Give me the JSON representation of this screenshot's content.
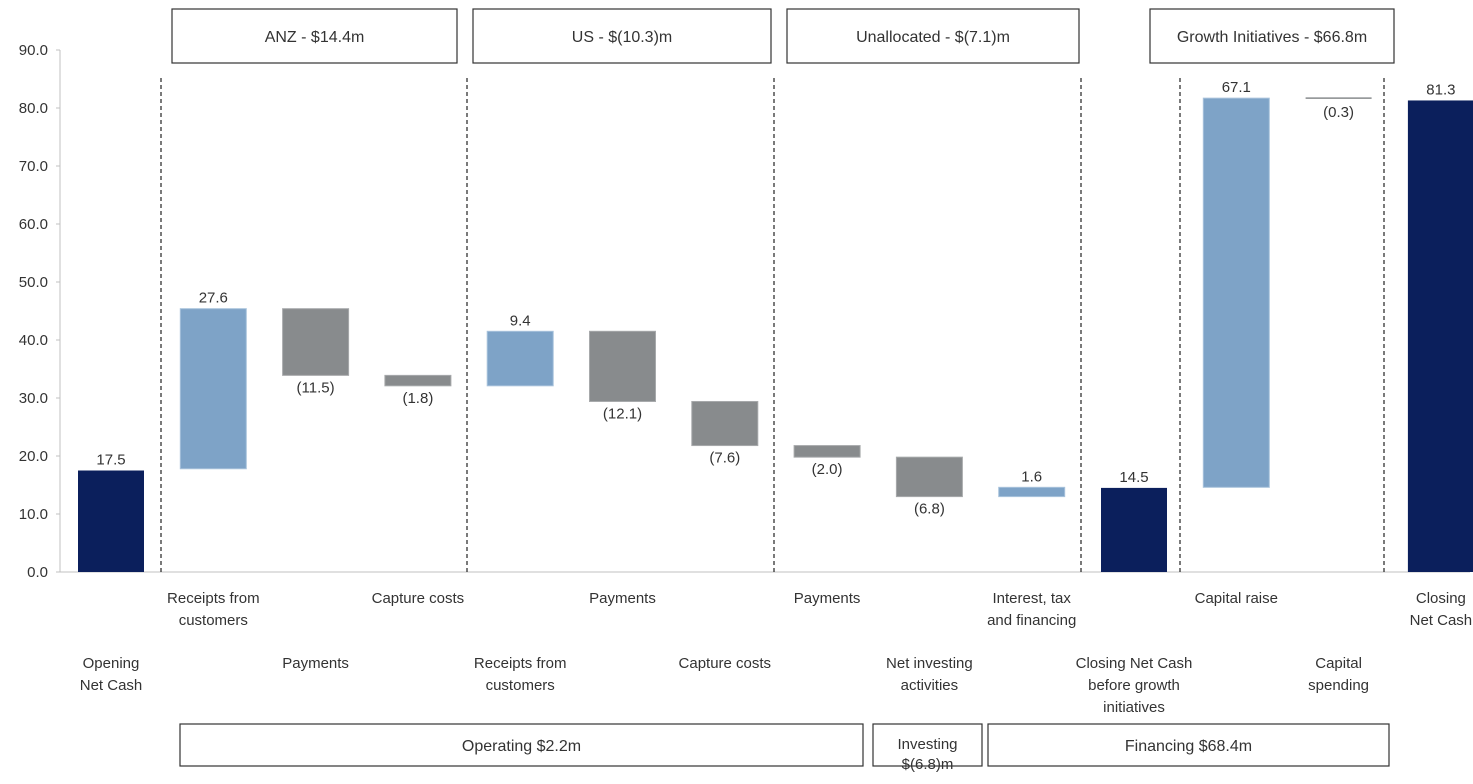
{
  "chart_data": {
    "type": "bar",
    "subtype": "waterfall",
    "title": "",
    "xlabel": "",
    "ylabel": "",
    "ylim": [
      0,
      90
    ],
    "yticks": [
      "0.0",
      "10.0",
      "20.0",
      "30.0",
      "40.0",
      "50.0",
      "60.0",
      "70.0",
      "80.0",
      "90.0"
    ],
    "grid": false,
    "legend": "none",
    "colors": {
      "total": "#0b1f5c",
      "increase": "#7ea3c7",
      "decrease": "#888b8d",
      "text": "#333333",
      "axis": "#c0c0c0",
      "box_border": "#333333"
    },
    "bars": [
      {
        "kind": "total",
        "label": [
          "Opening",
          "Net Cash"
        ],
        "label_row": 2,
        "base": 0,
        "top": 17.5,
        "value_label": "17.5",
        "value_pos": "above"
      },
      {
        "kind": "increase",
        "label": [
          "Receipts from",
          "customers"
        ],
        "label_row": 1,
        "base": 17.8,
        "top": 45.4,
        "value_label": "27.6",
        "value_pos": "above"
      },
      {
        "kind": "decrease",
        "label": [
          "Payments"
        ],
        "label_row": 2,
        "base": 33.9,
        "top": 45.4,
        "value_label": "(11.5)",
        "value_pos": "below"
      },
      {
        "kind": "decrease",
        "label": [
          "Capture costs"
        ],
        "label_row": 1,
        "base": 32.1,
        "top": 33.9,
        "value_label": "(1.8)",
        "value_pos": "below"
      },
      {
        "kind": "increase",
        "label": [
          "Receipts from",
          "customers"
        ],
        "label_row": 2,
        "base": 32.1,
        "top": 41.5,
        "value_label": "9.4",
        "value_pos": "above"
      },
      {
        "kind": "decrease",
        "label": [
          "Payments"
        ],
        "label_row": 1,
        "base": 29.4,
        "top": 41.5,
        "value_label": "(12.1)",
        "value_pos": "below"
      },
      {
        "kind": "decrease",
        "label": [
          "Capture costs"
        ],
        "label_row": 2,
        "base": 21.8,
        "top": 29.4,
        "value_label": "(7.6)",
        "value_pos": "below"
      },
      {
        "kind": "decrease",
        "label": [
          "Payments"
        ],
        "label_row": 1,
        "base": 19.8,
        "top": 21.8,
        "value_label": "(2.0)",
        "value_pos": "below"
      },
      {
        "kind": "decrease",
        "label": [
          "Net investing",
          "activities"
        ],
        "label_row": 2,
        "base": 13.0,
        "top": 19.8,
        "value_label": "(6.8)",
        "value_pos": "below"
      },
      {
        "kind": "increase",
        "label": [
          "Interest, tax",
          "and financing"
        ],
        "label_row": 1,
        "base": 13.0,
        "top": 14.6,
        "value_label": "1.6",
        "value_pos": "above"
      },
      {
        "kind": "total",
        "label": [
          "Closing Net Cash",
          "before growth",
          "initiatives"
        ],
        "label_row": 2,
        "base": 0,
        "top": 14.5,
        "value_label": "14.5",
        "value_pos": "above"
      },
      {
        "kind": "increase",
        "label": [
          "Capital raise"
        ],
        "label_row": 1,
        "base": 14.6,
        "top": 81.7,
        "value_label": "67.1",
        "value_pos": "above"
      },
      {
        "kind": "decrease",
        "label": [
          "Capital",
          "spending"
        ],
        "label_row": 2,
        "base": 81.4,
        "top": 81.7,
        "value_label": "(0.3)",
        "value_pos": "below"
      },
      {
        "kind": "total",
        "label": [
          "Closing",
          "Net Cash"
        ],
        "label_row": 1,
        "base": 0,
        "top": 81.3,
        "value_label": "81.3",
        "value_pos": "above"
      }
    ],
    "top_groups": [
      {
        "label": "ANZ - $14.4m"
      },
      {
        "label": "US - $(10.3)m"
      },
      {
        "label": "Unallocated  - $(7.1)m"
      },
      {
        "label": "Growth Initiatives  - $66.8m"
      }
    ],
    "bottom_groups": [
      {
        "label": [
          "Operating $2.2m"
        ]
      },
      {
        "label": [
          "Investing",
          "$(6.8)m"
        ]
      },
      {
        "label": [
          "Financing $68.4m"
        ]
      }
    ]
  }
}
